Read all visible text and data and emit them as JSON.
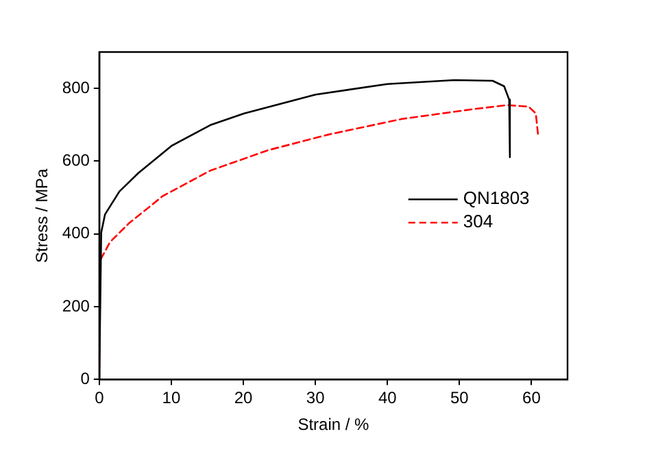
{
  "chart_data": {
    "type": "line",
    "xlabel": "Strain / %",
    "ylabel": "Stress / MPa",
    "xlim": [
      0,
      65
    ],
    "xticks": [
      0,
      10,
      20,
      30,
      40,
      50,
      60
    ],
    "ylim": [
      0,
      900
    ],
    "yticks": [
      0,
      200,
      400,
      600,
      800
    ],
    "grid": false,
    "legend": "right",
    "marker": "none",
    "series": [
      {
        "name": "QN1803",
        "color": "#000000",
        "line_style": "solid",
        "x": [
          0,
          0.27,
          0.8,
          2.8,
          5.4,
          10.1,
          15.4,
          20.1,
          30,
          40,
          49.3,
          54.6,
          56.2,
          56.9,
          57
        ],
        "values": [
          0,
          404,
          454,
          517,
          567,
          643,
          699,
          731,
          783,
          812,
          823,
          821,
          806,
          769,
          611
        ]
      },
      {
        "name": "304",
        "color": "#ff0000",
        "line_style": "dashed",
        "x": [
          0,
          0.13,
          1.5,
          4.1,
          8.8,
          15.4,
          23.4,
          32,
          42,
          51.9,
          56.6,
          59.6,
          60.6,
          60.9
        ],
        "values": [
          0,
          328,
          378,
          429,
          504,
          574,
          630,
          674,
          716,
          743,
          754,
          750,
          731,
          674
        ]
      }
    ]
  }
}
